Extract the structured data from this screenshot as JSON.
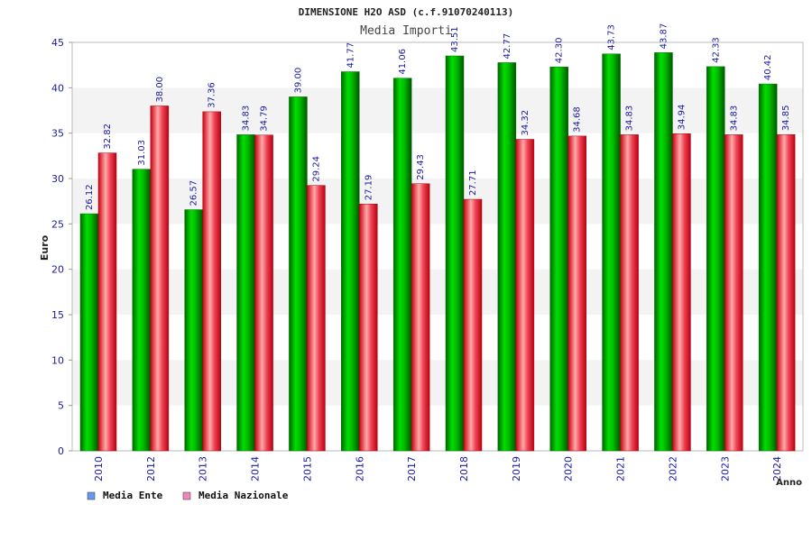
{
  "chart_data": {
    "type": "bar",
    "title": "DIMENSIONE H2O ASD (c.f.91070240113)",
    "subtitle": "Media Importi",
    "xlabel": "Anno",
    "ylabel": "Euro",
    "ylim": [
      0,
      45
    ],
    "yticks": [
      "0",
      "5",
      "10",
      "15",
      "20",
      "25",
      "30",
      "35",
      "40",
      "45"
    ],
    "categories": [
      "2010",
      "2012",
      "2013",
      "2014",
      "2015",
      "2016",
      "2017",
      "2018",
      "2019",
      "2020",
      "2021",
      "2022",
      "2023",
      "2024"
    ],
    "series": [
      {
        "name": "Media Ente",
        "color": "#00c800",
        "legend_color": "#6699ee",
        "values": [
          26.12,
          31.03,
          26.57,
          34.83,
          39.0,
          41.77,
          41.06,
          43.51,
          42.77,
          42.3,
          43.73,
          43.87,
          42.33,
          40.42
        ],
        "labels": [
          "26.12",
          "31.03",
          "26.57",
          "34.83",
          "39.00",
          "41.77",
          "41.06",
          "43.51",
          "42.77",
          "42.30",
          "43.73",
          "43.87",
          "42.33",
          "40.42"
        ]
      },
      {
        "name": "Media Nazionale",
        "color": "#ee1122",
        "legend_color": "#ee88bb",
        "values": [
          32.82,
          38.0,
          37.36,
          34.79,
          29.24,
          27.19,
          29.43,
          27.71,
          34.32,
          34.68,
          34.83,
          34.94,
          34.83,
          34.85
        ],
        "labels": [
          "32.82",
          "38.00",
          "37.36",
          "34.79",
          "29.24",
          "27.19",
          "29.43",
          "27.71",
          "34.32",
          "34.68",
          "34.83",
          "34.94",
          "34.83",
          "34.85"
        ]
      }
    ],
    "grid": true,
    "legend_position": "bottom-left"
  }
}
